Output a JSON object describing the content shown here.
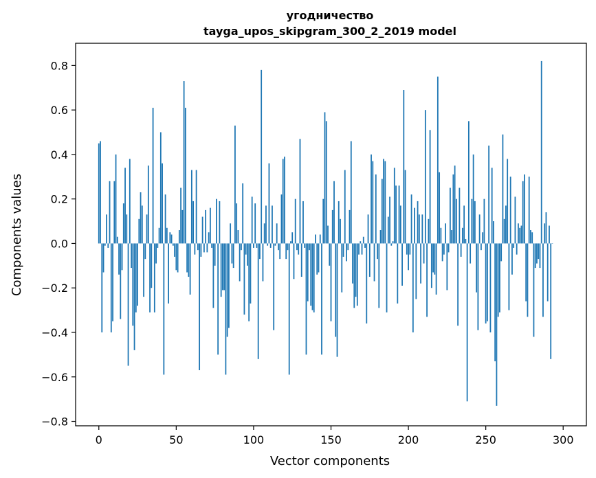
{
  "chart_data": {
    "type": "bar",
    "title_line1": "угодничество",
    "title_line2": "tayga_upos_skipgram_300_2_2019 model",
    "xlabel": "Vector components",
    "ylabel": "Components values",
    "xlim": [
      -15,
      315
    ],
    "ylim": [
      -0.82,
      0.9
    ],
    "x_ticks": [
      0,
      50,
      100,
      150,
      200,
      250,
      300
    ],
    "x_tick_labels": [
      "0",
      "50",
      "100",
      "150",
      "200",
      "250",
      "300"
    ],
    "y_ticks": [
      -0.8,
      -0.6,
      -0.4,
      -0.2,
      0.0,
      0.2,
      0.4,
      0.6,
      0.8
    ],
    "y_tick_labels": [
      "−0.8",
      "−0.6",
      "−0.4",
      "−0.2",
      "0.0",
      "0.2",
      "0.4",
      "0.6",
      "0.8"
    ],
    "bar_color": "#1f77b4",
    "values": [
      0.45,
      0.46,
      -0.4,
      -0.13,
      -0.01,
      0.13,
      -0.02,
      0.28,
      -0.4,
      -0.35,
      0.28,
      0.4,
      0.03,
      -0.14,
      -0.34,
      -0.12,
      0.18,
      0.34,
      0.13,
      -0.55,
      0.38,
      -0.11,
      -0.37,
      -0.48,
      -0.31,
      -0.28,
      0.11,
      0.23,
      0.17,
      -0.24,
      -0.07,
      0.13,
      0.35,
      -0.31,
      -0.2,
      0.61,
      -0.31,
      -0.09,
      -0.02,
      0.07,
      0.5,
      0.36,
      -0.59,
      0.22,
      0.07,
      -0.27,
      0.05,
      0.04,
      -0.01,
      -0.06,
      -0.12,
      -0.13,
      0.06,
      0.25,
      0.15,
      0.73,
      0.61,
      -0.13,
      -0.15,
      -0.23,
      0.33,
      0.19,
      -0.05,
      0.33,
      -0.03,
      -0.57,
      -0.06,
      0.12,
      -0.04,
      0.15,
      -0.04,
      0.05,
      0.16,
      -0.02,
      -0.29,
      -0.1,
      0.2,
      -0.5,
      0.19,
      -0.24,
      -0.21,
      -0.21,
      -0.59,
      -0.42,
      -0.38,
      0.09,
      -0.09,
      -0.11,
      0.53,
      0.18,
      0.06,
      -0.17,
      -0.03,
      0.27,
      -0.32,
      -0.05,
      -0.1,
      -0.35,
      -0.27,
      0.21,
      -0.02,
      0.18,
      -0.02,
      -0.52,
      -0.07,
      0.78,
      -0.17,
      0.09,
      0.17,
      -0.01,
      0.36,
      -0.02,
      0.17,
      -0.39,
      -0.01,
      0.09,
      -0.03,
      -0.07,
      0.22,
      0.38,
      0.39,
      -0.07,
      -0.03,
      -0.59,
      0.01,
      0.05,
      -0.16,
      0.2,
      -0.03,
      -0.05,
      0.47,
      -0.15,
      0.19,
      -0.02,
      -0.5,
      -0.26,
      -0.03,
      -0.28,
      -0.3,
      -0.31,
      0.04,
      -0.14,
      -0.13,
      0.04,
      -0.5,
      0.2,
      0.59,
      0.55,
      0.08,
      -0.1,
      -0.35,
      0.15,
      0.28,
      -0.42,
      -0.51,
      0.19,
      0.11,
      -0.22,
      -0.06,
      0.33,
      -0.08,
      -0.03,
      0.15,
      0.46,
      -0.18,
      -0.29,
      -0.24,
      -0.28,
      -0.05,
      0.01,
      -0.05,
      0.03,
      -0.02,
      -0.36,
      0.13,
      -0.15,
      0.4,
      0.37,
      -0.17,
      0.31,
      -0.07,
      -0.29,
      0.06,
      0.29,
      0.38,
      0.37,
      -0.31,
      0.12,
      0.21,
      -0.01,
      0.01,
      0.34,
      0.26,
      -0.27,
      0.26,
      0.17,
      -0.19,
      0.69,
      0.33,
      -0.05,
      -0.12,
      -0.05,
      0.22,
      -0.4,
      0.16,
      -0.25,
      0.19,
      0.13,
      -0.18,
      0.13,
      -0.09,
      0.6,
      -0.33,
      0.11,
      0.51,
      -0.2,
      -0.13,
      -0.14,
      -0.23,
      0.75,
      0.32,
      0.07,
      -0.08,
      -0.05,
      0.09,
      -0.21,
      -0.04,
      0.25,
      0.06,
      0.31,
      0.35,
      0.2,
      -0.37,
      0.25,
      -0.06,
      0.07,
      0.17,
      0.02,
      -0.71,
      0.55,
      -0.09,
      0.2,
      0.4,
      0.19,
      -0.22,
      -0.39,
      0.13,
      -0.03,
      0.05,
      0.2,
      -0.36,
      -0.35,
      0.44,
      -0.4,
      0.34,
      0.1,
      -0.53,
      -0.73,
      -0.33,
      -0.31,
      -0.08,
      0.49,
      0.11,
      0.17,
      0.38,
      -0.3,
      0.3,
      -0.14,
      -0.02,
      0.21,
      -0.05,
      0.09,
      0.07,
      0.08,
      0.28,
      0.31,
      -0.26,
      -0.33,
      0.3,
      0.06,
      0.05,
      -0.42,
      -0.11,
      -0.09,
      -0.07,
      -0.11,
      0.82,
      -0.33,
      0.09,
      0.14,
      -0.26,
      0.08,
      -0.52,
      0.0
    ]
  }
}
